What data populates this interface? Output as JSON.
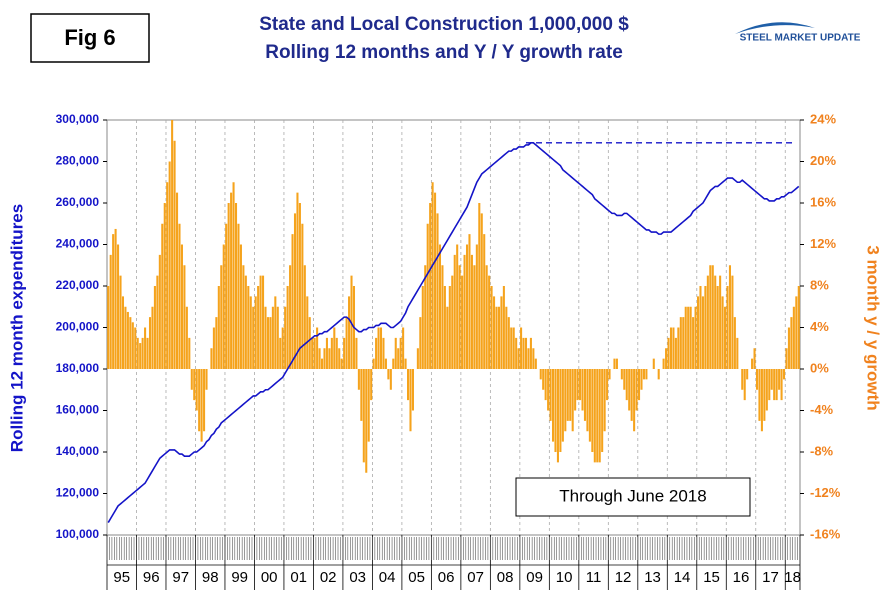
{
  "fig_label": "Fig 6",
  "logo": "STEEL MARKET UPDATE",
  "chart_data": {
    "type": "bar-line",
    "title": "State and Local Construction 1,000,000 $",
    "subtitle": "Rolling 12 months and Y / Y growth rate",
    "ylabel": "Rolling 12 month expenditures",
    "y2label": "3 month y / y growth",
    "annotation": "Through June 2018",
    "categories": [
      "95",
      "96",
      "97",
      "98",
      "99",
      "00",
      "01",
      "02",
      "03",
      "04",
      "05",
      "06",
      "07",
      "08",
      "09",
      "10",
      "11",
      "12",
      "13",
      "14",
      "15",
      "16",
      "17",
      "18"
    ],
    "ylim": [
      100000,
      300000
    ],
    "yticks": [
      {
        "value": 100000,
        "label": "100,000"
      },
      {
        "value": 120000,
        "label": "120,000"
      },
      {
        "value": 140000,
        "label": "140,000"
      },
      {
        "value": 160000,
        "label": "160,000"
      },
      {
        "value": 180000,
        "label": "180,000"
      },
      {
        "value": 200000,
        "label": "200,000"
      },
      {
        "value": 220000,
        "label": "220,000"
      },
      {
        "value": 240000,
        "label": "240,000"
      },
      {
        "value": 260000,
        "label": "260,000"
      },
      {
        "value": 280000,
        "label": "280,000"
      },
      {
        "value": 300000,
        "label": "300,000"
      }
    ],
    "y2lim": [
      -16,
      24
    ],
    "y2ticks": [
      {
        "value": -16,
        "label": "-16%"
      },
      {
        "value": -12,
        "label": "-12%"
      },
      {
        "value": -8,
        "label": "-8%"
      },
      {
        "value": -4,
        "label": "-4%"
      },
      {
        "value": 0,
        "label": "0%"
      },
      {
        "value": 4,
        "label": "4%"
      },
      {
        "value": 8,
        "label": "8%"
      },
      {
        "value": 12,
        "label": "12%"
      },
      {
        "value": 16,
        "label": "16%"
      },
      {
        "value": 20,
        "label": "20%"
      },
      {
        "value": 24,
        "label": "24%"
      }
    ],
    "peak_line": 289000,
    "series": [
      {
        "type": "bar",
        "axis": "y2",
        "color": "#f5a31c",
        "values": [
          [
            8,
            11,
            13,
            13.5,
            12,
            9,
            7,
            6,
            5.5,
            5,
            4.5,
            4
          ],
          [
            3,
            2.5,
            3,
            4,
            3,
            5,
            6,
            8,
            9,
            11,
            14,
            16
          ],
          [
            18,
            20,
            24,
            22,
            17,
            14,
            12,
            10,
            6,
            3,
            -2,
            -3
          ],
          [
            -4,
            -6,
            -7,
            -6,
            -2,
            0,
            2,
            4,
            5,
            8,
            10,
            12
          ],
          [
            14,
            16,
            17,
            18,
            16,
            14,
            12,
            10,
            9,
            8,
            7,
            6
          ],
          [
            7,
            8,
            9,
            9,
            6,
            5,
            5,
            6,
            7,
            6,
            3,
            4
          ],
          [
            6,
            8,
            10,
            13,
            15,
            17,
            16,
            14,
            10,
            7,
            5,
            3
          ],
          [
            3,
            4,
            2,
            1,
            2,
            3,
            2,
            3,
            4,
            3,
            2,
            1
          ],
          [
            3,
            5,
            7,
            9,
            8,
            3,
            -2,
            -5,
            -9,
            -10,
            -7,
            -3
          ],
          [
            1,
            3,
            4,
            4,
            3,
            1,
            -1,
            -2,
            1,
            3,
            2,
            3
          ],
          [
            4,
            1,
            -3,
            -6,
            -4,
            0,
            2,
            5,
            8,
            10,
            14,
            16
          ],
          [
            18,
            17,
            15,
            12,
            10,
            8,
            6,
            8,
            9,
            11,
            12,
            10
          ],
          [
            9,
            11,
            12,
            13,
            11,
            10,
            12,
            16,
            15,
            13,
            10,
            9
          ],
          [
            8,
            7,
            6,
            6,
            7,
            8,
            6,
            5,
            4,
            4,
            3,
            2
          ],
          [
            4,
            3,
            3,
            2,
            3,
            2,
            1,
            0,
            -1,
            -2,
            -3,
            -4
          ],
          [
            -5,
            -7,
            -8,
            -9,
            -8,
            -7,
            -6,
            -5,
            -5,
            -6,
            -4,
            -3
          ],
          [
            -3,
            -4,
            -5,
            -6,
            -7,
            -8,
            -9,
            -9,
            -9,
            -8,
            -6,
            -3
          ],
          [
            -1,
            0,
            1,
            1,
            0,
            -1,
            -2,
            -3,
            -4,
            -5,
            -6,
            -4
          ],
          [
            -3,
            -2,
            -1,
            -1,
            0,
            0,
            1,
            0,
            -1,
            0,
            1,
            2
          ],
          [
            3,
            4,
            4,
            3,
            4,
            5,
            5,
            6,
            6,
            6,
            5,
            6
          ],
          [
            7,
            8,
            7,
            8,
            9,
            10,
            10,
            9,
            8,
            9,
            7,
            6
          ],
          [
            8,
            10,
            9,
            5,
            3,
            0,
            -2,
            -3,
            -1,
            0,
            1,
            2
          ],
          [
            -2,
            -5,
            -6,
            -5,
            -4,
            -3,
            -2,
            -3,
            -3,
            -2,
            -3,
            -1
          ],
          [
            2,
            4,
            5,
            6,
            7,
            8
          ]
        ]
      },
      {
        "type": "line",
        "axis": "y",
        "color": "#1414c8",
        "values": [
          [
            106000,
            108000,
            110000,
            112000,
            114000,
            115000,
            116000,
            117000,
            118000,
            119000,
            120000,
            121000
          ],
          [
            122000,
            123000,
            124000,
            125000,
            127000,
            129000,
            131000,
            133000,
            135000,
            137000,
            138000,
            139000
          ],
          [
            140000,
            141000,
            141000,
            141000,
            140000,
            139000,
            139000,
            138000,
            138000,
            138000,
            139000,
            140000
          ],
          [
            140000,
            141000,
            142000,
            143000,
            145000,
            146000,
            148000,
            149000,
            151000,
            152000,
            154000,
            155000
          ],
          [
            156000,
            157000,
            158000,
            159000,
            160000,
            161000,
            162000,
            163000,
            164000,
            165000,
            166000,
            167000
          ],
          [
            167000,
            168000,
            169000,
            169000,
            170000,
            170000,
            171000,
            172000,
            173000,
            174000,
            175000,
            176000
          ],
          [
            178000,
            180000,
            182000,
            184000,
            186000,
            188000,
            190000,
            191000,
            192000,
            193000,
            194000,
            195000
          ],
          [
            196000,
            196000,
            197000,
            197000,
            198000,
            198000,
            199000,
            200000,
            201000,
            202000,
            203000,
            204000
          ],
          [
            205000,
            205000,
            204000,
            202000,
            200000,
            199000,
            198000,
            198000,
            199000,
            199000,
            200000,
            200000
          ],
          [
            200000,
            201000,
            201000,
            202000,
            202000,
            202000,
            201000,
            200000,
            200000,
            201000,
            202000,
            203000
          ],
          [
            205000,
            207000,
            210000,
            212000,
            214000,
            216000,
            218000,
            220000,
            222000,
            224000,
            226000,
            228000
          ],
          [
            230000,
            232000,
            234000,
            236000,
            238000,
            240000,
            242000,
            244000,
            246000,
            248000,
            250000,
            252000
          ],
          [
            254000,
            256000,
            258000,
            261000,
            264000,
            267000,
            270000,
            272000,
            274000,
            275000,
            276000,
            277000
          ],
          [
            278000,
            279000,
            280000,
            281000,
            282000,
            283000,
            284000,
            285000,
            285000,
            286000,
            286000,
            287000
          ],
          [
            287000,
            287000,
            288000,
            288000,
            289000,
            289000,
            288000,
            287000,
            286000,
            285000,
            284000,
            283000
          ],
          [
            282000,
            281000,
            280000,
            279000,
            278000,
            276000,
            275000,
            274000,
            273000,
            272000,
            271000,
            270000
          ],
          [
            269000,
            268000,
            267000,
            266000,
            265000,
            264000,
            262000,
            261000,
            260000,
            259000,
            258000,
            257000
          ],
          [
            256000,
            255000,
            255000,
            254000,
            254000,
            254000,
            255000,
            255000,
            254000,
            253000,
            252000,
            251000
          ],
          [
            250000,
            249000,
            248000,
            247000,
            247000,
            246000,
            246000,
            246000,
            245000,
            245000,
            246000,
            246000
          ],
          [
            246000,
            246000,
            247000,
            248000,
            249000,
            250000,
            251000,
            252000,
            253000,
            254000,
            256000,
            257000
          ],
          [
            258000,
            259000,
            260000,
            262000,
            264000,
            266000,
            267000,
            268000,
            268000,
            269000,
            270000,
            271000
          ],
          [
            272000,
            272000,
            272000,
            271000,
            270000,
            270000,
            271000,
            270000,
            269000,
            268000,
            267000,
            266000
          ],
          [
            265000,
            264000,
            263000,
            262000,
            262000,
            261000,
            261000,
            261000,
            262000,
            262000,
            263000,
            263000
          ],
          [
            264000,
            265000,
            265000,
            266000,
            267000,
            268000
          ]
        ]
      }
    ]
  }
}
